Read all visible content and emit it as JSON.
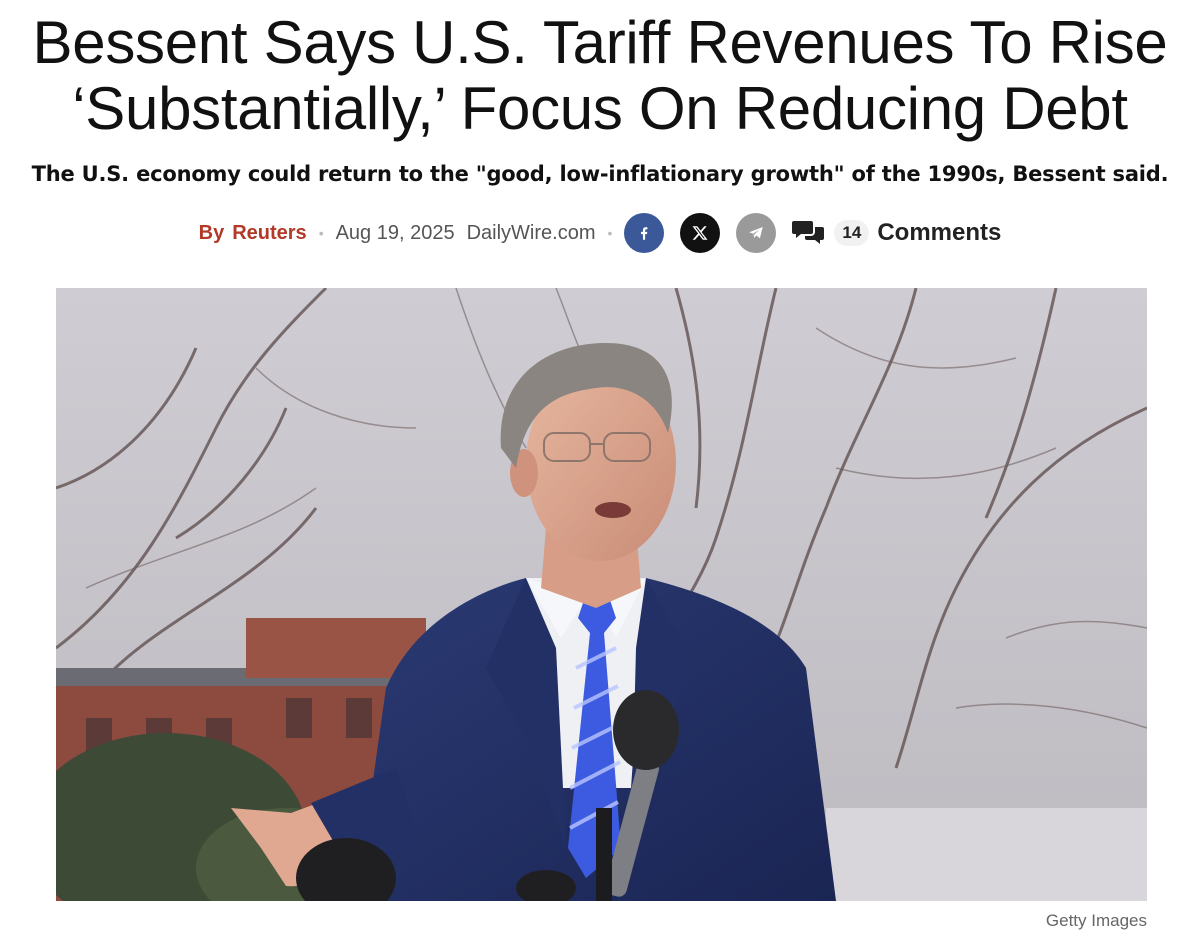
{
  "article": {
    "headline_line1": "Bessent Says U.S. Tariff Revenues To Rise",
    "headline_line2": "‘Substantially,’ Focus On Reducing Debt",
    "subheadline": "The U.S. economy could return to the \"good, low-inflationary growth\" of the 1990s, Bessent said.",
    "byline_prefix": "By",
    "author": "Reuters",
    "date": "Aug 19, 2025",
    "source": "DailyWire.com",
    "comment_count": "14",
    "comments_label": "Comments",
    "photo_credit": "Getty Images"
  },
  "share": {
    "icons": [
      "facebook-icon",
      "x-icon",
      "telegram-icon",
      "comments-icon"
    ]
  },
  "colors": {
    "author_link": "#b13a29",
    "facebook": "#3b5998",
    "x": "#111111",
    "telegram": "#9a9a9a"
  }
}
